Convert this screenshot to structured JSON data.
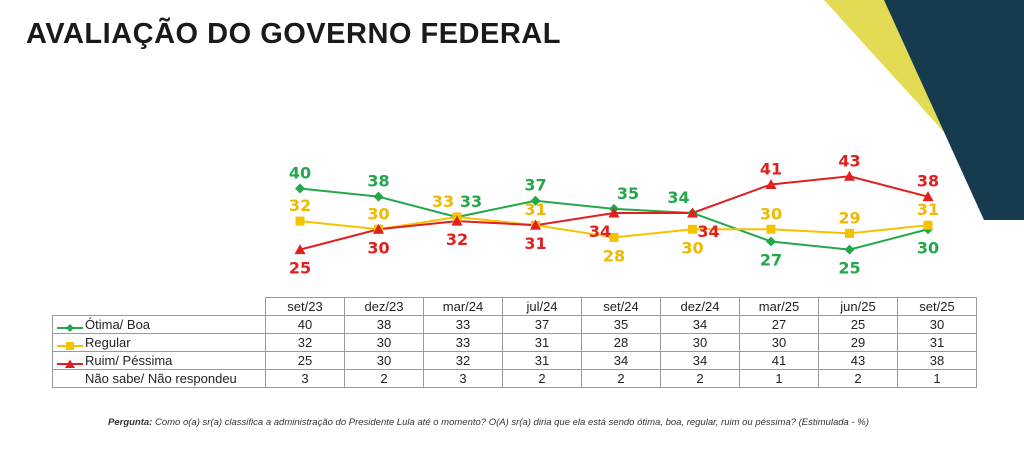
{
  "title": "AVALIAÇÃO DO GOVERNO FEDERAL",
  "colors": {
    "otima": "#22a84a",
    "regular": "#f5c200",
    "ruim": "#e01f1f",
    "navy": "#163b4e",
    "yellow": "#e3db54"
  },
  "chart_data": {
    "type": "line",
    "categories": [
      "set/23",
      "dez/23",
      "mar/24",
      "jul/24",
      "set/24",
      "dez/24",
      "mar/25",
      "jun/25",
      "set/25"
    ],
    "series": [
      {
        "name": "Ótima/ Boa",
        "values": [
          40,
          38,
          33,
          37,
          35,
          34,
          27,
          25,
          30
        ],
        "color": "#22a84a",
        "marker": "diamond"
      },
      {
        "name": "Regular",
        "values": [
          32,
          30,
          33,
          31,
          28,
          30,
          30,
          29,
          31
        ],
        "color": "#f5c200",
        "marker": "square"
      },
      {
        "name": "Ruim/ Péssima",
        "values": [
          25,
          30,
          32,
          31,
          34,
          34,
          41,
          43,
          38
        ],
        "color": "#e01f1f",
        "marker": "triangle"
      }
    ],
    "extra_row": {
      "name": "Não sabe/ Não respondeu",
      "values": [
        3,
        2,
        3,
        2,
        2,
        2,
        1,
        2,
        1
      ]
    },
    "ylim": [
      20,
      47
    ],
    "xlabel": "",
    "ylabel": ""
  },
  "footnote": {
    "label": "Pergunta:",
    "text": " Como o(a) sr(a) classifica a administração do Presidente Lula até o momento? O(A) sr(a) diria que ela está sendo ótima, boa, regular, ruim ou péssima? (Estimulada - %)"
  }
}
